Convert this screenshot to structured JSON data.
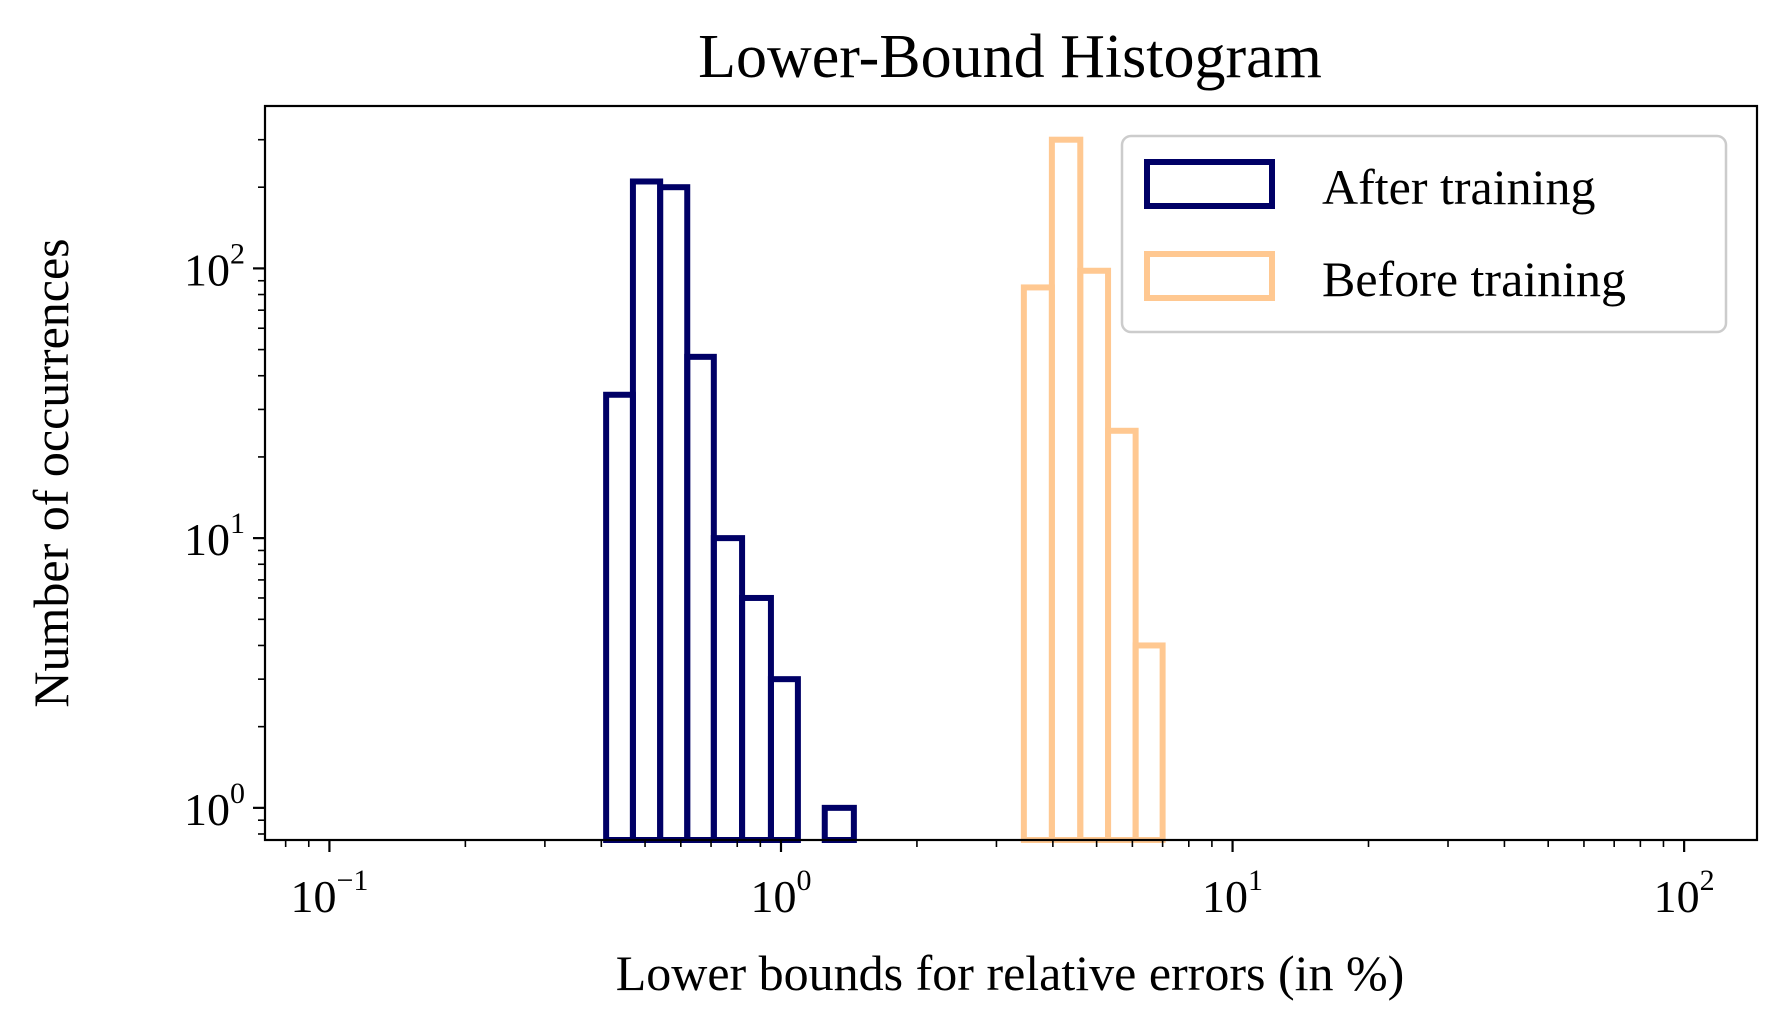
{
  "chart_data": {
    "type": "histogram",
    "title": "Lower-Bound Histogram",
    "xlabel": "Lower bounds for relative errors (in %)",
    "ylabel": "Number of occurrences",
    "xscale": "log",
    "yscale": "log",
    "xlim": [
      0.072,
      145
    ],
    "ylim": [
      0.76,
      400
    ],
    "xticks": [
      {
        "base": "10",
        "exp": "−1",
        "value": 0.1
      },
      {
        "base": "10",
        "exp": "0",
        "value": 1
      },
      {
        "base": "10",
        "exp": "1",
        "value": 10
      },
      {
        "base": "10",
        "exp": "2",
        "value": 100
      }
    ],
    "yticks": [
      {
        "base": "10",
        "exp": "0",
        "value": 1
      },
      {
        "base": "10",
        "exp": "1",
        "value": 10
      },
      {
        "base": "10",
        "exp": "2",
        "value": 100
      }
    ],
    "grid": false,
    "legend_position": "top-right",
    "series": [
      {
        "name": "After training",
        "color": "#000066",
        "bins": [
          {
            "x0": 0.41,
            "x1": 0.47,
            "count": 34
          },
          {
            "x0": 0.47,
            "x1": 0.54,
            "count": 210
          },
          {
            "x0": 0.54,
            "x1": 0.62,
            "count": 200
          },
          {
            "x0": 0.62,
            "x1": 0.71,
            "count": 47
          },
          {
            "x0": 0.71,
            "x1": 0.82,
            "count": 10
          },
          {
            "x0": 0.82,
            "x1": 0.95,
            "count": 6
          },
          {
            "x0": 0.95,
            "x1": 1.09,
            "count": 3
          },
          {
            "x0": 1.09,
            "x1": 1.25,
            "count": 0
          },
          {
            "x0": 1.25,
            "x1": 1.45,
            "count": 1
          }
        ]
      },
      {
        "name": "Before training",
        "color": "#ffc891",
        "bins": [
          {
            "x0": 3.45,
            "x1": 3.98,
            "count": 85
          },
          {
            "x0": 3.98,
            "x1": 4.6,
            "count": 300
          },
          {
            "x0": 4.6,
            "x1": 5.3,
            "count": 98
          },
          {
            "x0": 5.3,
            "x1": 6.1,
            "count": 25
          },
          {
            "x0": 6.1,
            "x1": 7.0,
            "count": 4
          }
        ]
      }
    ]
  }
}
